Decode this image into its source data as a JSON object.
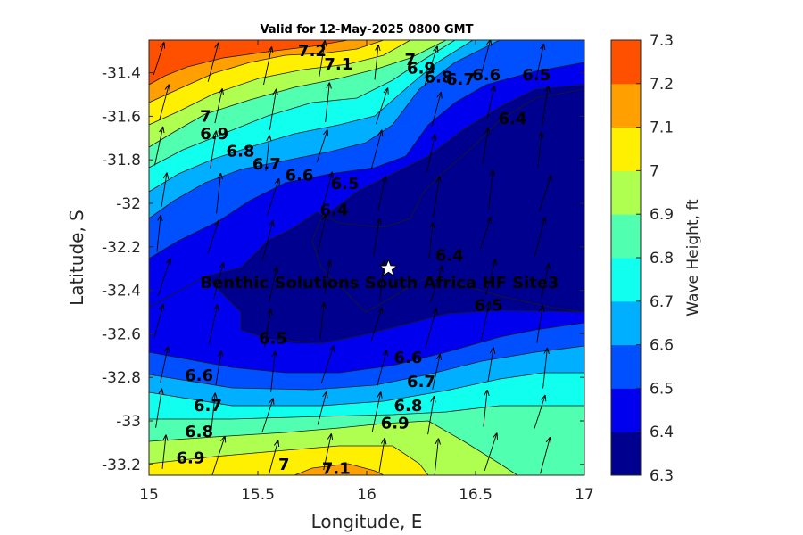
{
  "chart_data": {
    "type": "contour",
    "title": "Valid for 12-May-2025 0800 GMT",
    "xlabel": "Longitude, E",
    "ylabel": "Latitude, S",
    "xlim": [
      15,
      17
    ],
    "ylim": [
      -33.25,
      -31.25
    ],
    "x_ticks": [
      "15",
      "15.5",
      "16",
      "16.5",
      "17"
    ],
    "y_ticks": [
      "-31.4",
      "-31.6",
      "-31.8",
      "-32",
      "-32.2",
      "-32.4",
      "-32.6",
      "-32.8",
      "-33",
      "-33.2"
    ],
    "colorbar": {
      "label": "Wave Height, ft",
      "range": [
        6.3,
        7.3
      ],
      "ticks": [
        "6.3",
        "6.4",
        "6.5",
        "6.6",
        "6.7",
        "6.8",
        "6.9",
        "7",
        "7.1",
        "7.2",
        "7.3"
      ],
      "colors": [
        "#00008f",
        "#0000ef",
        "#0050ff",
        "#00afff",
        "#10ffef",
        "#50ffaf",
        "#afff50",
        "#ffef00",
        "#ff9f00",
        "#ff5000"
      ]
    },
    "contour_labels": [
      {
        "text": "7.2",
        "lon": 15.75,
        "lat": -31.3
      },
      {
        "text": "7.1",
        "lon": 15.87,
        "lat": -31.36
      },
      {
        "text": "7",
        "lon": 16.2,
        "lat": -31.34
      },
      {
        "text": "6.9",
        "lon": 16.25,
        "lat": -31.38
      },
      {
        "text": "6.8",
        "lon": 16.33,
        "lat": -31.42
      },
      {
        "text": "6.7",
        "lon": 16.43,
        "lat": -31.43
      },
      {
        "text": "6.6",
        "lon": 16.55,
        "lat": -31.41
      },
      {
        "text": "6.5",
        "lon": 16.78,
        "lat": -31.41
      },
      {
        "text": "6.4",
        "lon": 16.67,
        "lat": -31.61
      },
      {
        "text": "7",
        "lon": 15.26,
        "lat": -31.6
      },
      {
        "text": "6.9",
        "lon": 15.3,
        "lat": -31.68
      },
      {
        "text": "6.8",
        "lon": 15.42,
        "lat": -31.76
      },
      {
        "text": "6.7",
        "lon": 15.54,
        "lat": -31.82
      },
      {
        "text": "6.6",
        "lon": 15.69,
        "lat": -31.87
      },
      {
        "text": "6.5",
        "lon": 15.9,
        "lat": -31.91
      },
      {
        "text": "6.4",
        "lon": 15.85,
        "lat": -32.03
      },
      {
        "text": "6.4",
        "lon": 16.38,
        "lat": -32.24
      },
      {
        "text": "6.5",
        "lon": 16.56,
        "lat": -32.47
      },
      {
        "text": "6.5",
        "lon": 15.57,
        "lat": -32.62
      },
      {
        "text": "6.6",
        "lon": 15.23,
        "lat": -32.79
      },
      {
        "text": "6.6",
        "lon": 16.19,
        "lat": -32.71
      },
      {
        "text": "6.7",
        "lon": 16.25,
        "lat": -32.82
      },
      {
        "text": "6.7",
        "lon": 15.27,
        "lat": -32.93
      },
      {
        "text": "6.8",
        "lon": 16.19,
        "lat": -32.93
      },
      {
        "text": "6.8",
        "lon": 15.23,
        "lat": -33.05
      },
      {
        "text": "6.9",
        "lon": 16.13,
        "lat": -33.01
      },
      {
        "text": "6.9",
        "lon": 15.19,
        "lat": -33.17
      },
      {
        "text": "7",
        "lon": 15.62,
        "lat": -33.2
      },
      {
        "text": "7.1",
        "lon": 15.86,
        "lat": -33.22
      }
    ],
    "site": {
      "name": "Benthic Solutions South Africa HF Site3",
      "lon": 16.1,
      "lat": -32.3,
      "marker": "star"
    },
    "grid": false
  }
}
